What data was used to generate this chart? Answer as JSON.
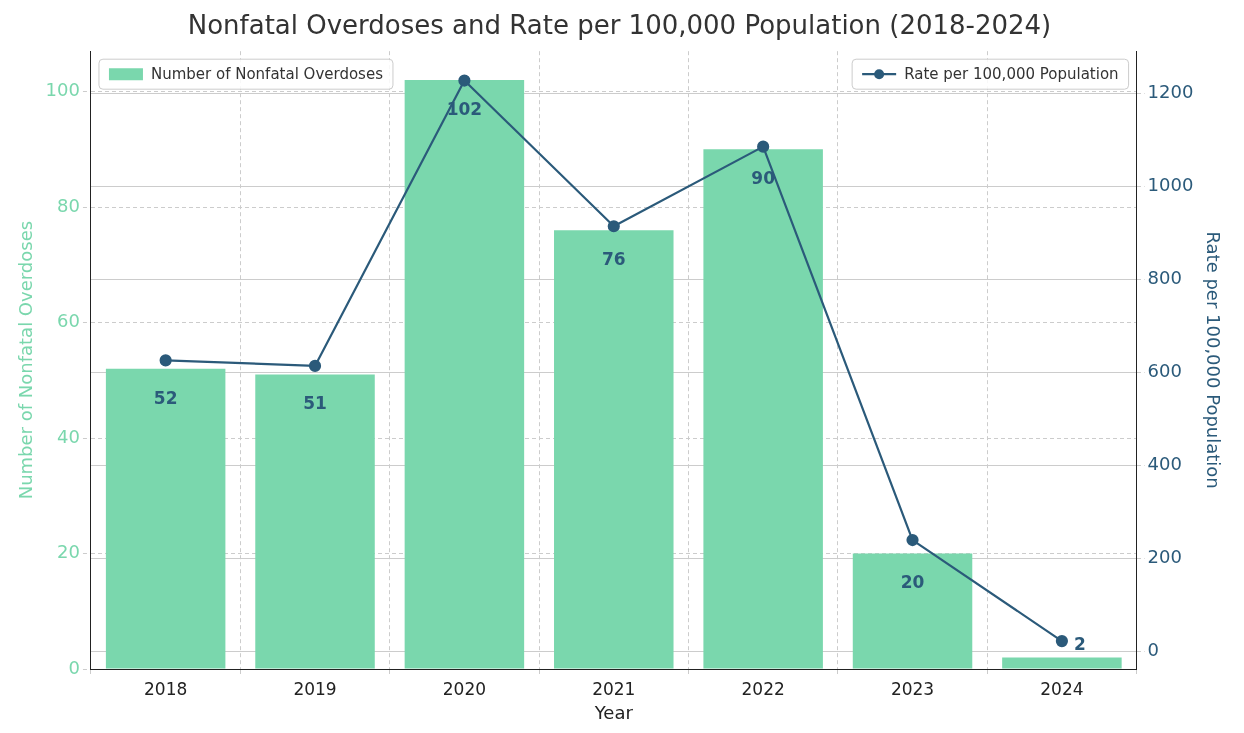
{
  "chart_data": {
    "type": "bar",
    "title": "Nonfatal Overdoses and Rate per 100,000 Population (2018-2024)",
    "xlabel": "Year",
    "ylabel": "Number of Nonfatal Overdoses",
    "y2label": "Rate per 100,000 Population",
    "categories": [
      "2018",
      "2019",
      "2020",
      "2021",
      "2022",
      "2023",
      "2024"
    ],
    "series": [
      {
        "name": "Number of Nonfatal Overdoses",
        "color": "#7ad7ad",
        "values": [
          52,
          51,
          102,
          76,
          90,
          20,
          2
        ],
        "value_labels": [
          "52",
          "51",
          "102",
          "76",
          "90",
          "20",
          "2"
        ]
      },
      {
        "name": "Rate per 100,000 Population",
        "type": "line",
        "axis": "y2",
        "color": "#2b5a7a",
        "values": [
          626,
          614,
          1227,
          914,
          1085,
          240,
          23
        ]
      }
    ],
    "ylim": [
      0,
      107
    ],
    "yticks": [
      0,
      20,
      40,
      60,
      80,
      100
    ],
    "y2lim": [
      -37,
      1290
    ],
    "y2ticks": [
      0,
      200,
      400,
      600,
      800,
      {
        "value": 1000,
        "label": "1000"
      },
      {
        "value": 1200,
        "label": "1200"
      }
    ],
    "grid": true,
    "legend": "top",
    "marker": "circle",
    "line_style": "solid"
  }
}
